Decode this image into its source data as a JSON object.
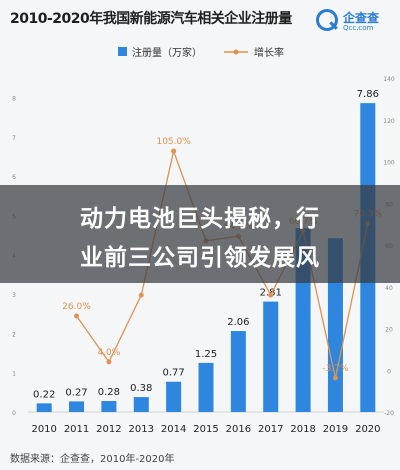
{
  "header": {
    "title": "2010-2020年我国新能源汽车相关企业注册量",
    "logo_name": "企查查",
    "logo_domain": "Qcc.com"
  },
  "banner": {
    "line1": "动力电池巨头揭秘，行",
    "line2": "业前三公司引领发展风"
  },
  "source": "数据来源：企查查，2010年-2020年",
  "colors": {
    "bar": "#2e86de",
    "line": "#e0924e",
    "text": "#333333"
  },
  "chart_data": {
    "type": "bar",
    "title": "2010-2020年我国新能源汽车相关企业注册量",
    "categories": [
      "2010",
      "2011",
      "2012",
      "2013",
      "2014",
      "2015",
      "2016",
      "2017",
      "2018",
      "2019",
      "2020"
    ],
    "series": [
      {
        "name": "注册量（万家）",
        "type": "bar",
        "axis": "left",
        "values": [
          0.22,
          0.27,
          0.28,
          0.38,
          0.77,
          1.25,
          2.06,
          2.81,
          4.68,
          4.42,
          7.86
        ],
        "labels": [
          "0.22",
          "0.27",
          "0.28",
          "0.38",
          "0.77",
          "1.25",
          "2.06",
          "2.81",
          "",
          "",
          "7.86"
        ]
      },
      {
        "name": "增长率",
        "type": "line",
        "axis": "right",
        "values": [
          null,
          26.0,
          4.0,
          36.0,
          105.0,
          62.0,
          64.2,
          36.0,
          66.7,
          -3.7,
          70.3
        ],
        "labels": [
          "",
          "26.0%",
          "4.0%",
          "",
          "105.0%",
          "",
          "64.2%",
          "",
          "66.7%",
          "-3.7%",
          "70.3%"
        ]
      }
    ],
    "y_left_ticks": [
      "0",
      "1",
      "2",
      "3",
      "4",
      "5",
      "6",
      "7",
      "8"
    ],
    "ylim_left": [
      0,
      8.5
    ],
    "y_right_ticks": [
      "-20",
      "0",
      "20",
      "40",
      "60",
      "80",
      "100",
      "120",
      "140"
    ],
    "ylim_right": [
      -20,
      140
    ],
    "legend_position": "top"
  }
}
